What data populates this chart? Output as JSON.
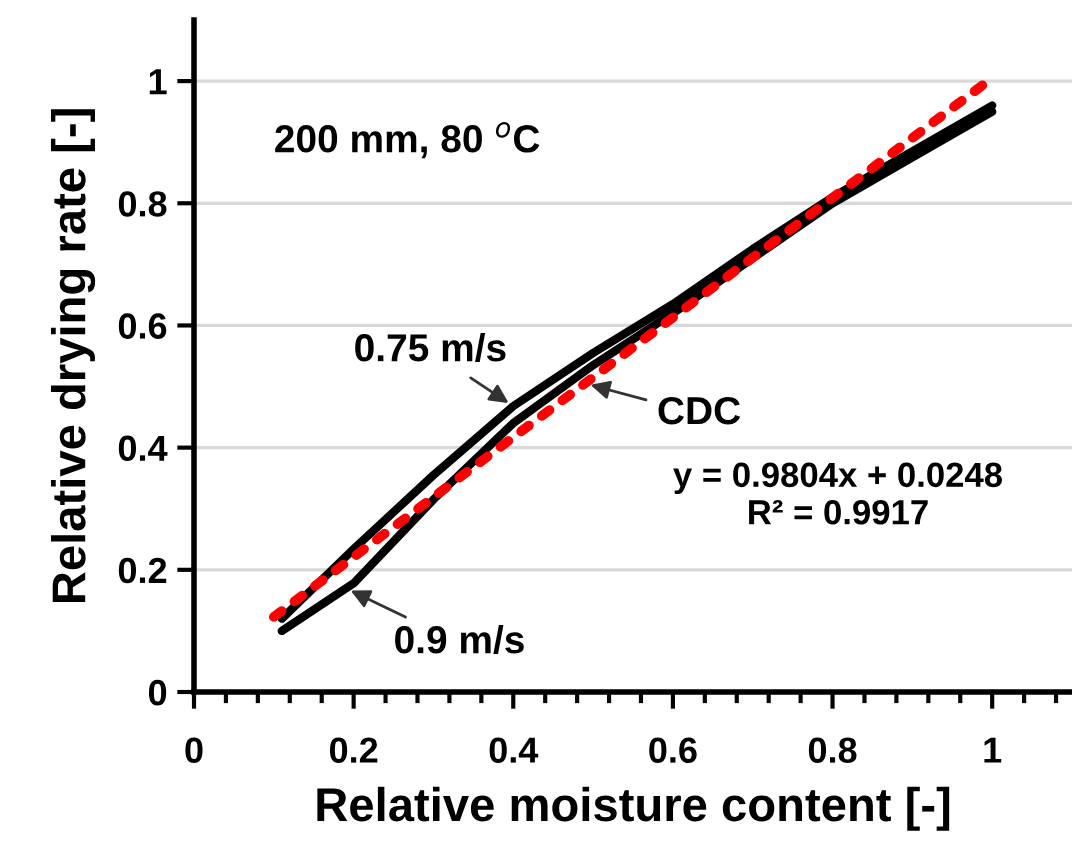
{
  "chart_data": {
    "type": "line",
    "xlabel": "Relative moisture content [-]",
    "ylabel": "Relative drying rate [-]",
    "xlim": [
      0,
      1.1
    ],
    "ylim": [
      0,
      1.1
    ],
    "xticks": [
      0,
      0.2,
      0.4,
      0.6,
      0.8,
      1
    ],
    "yticks": [
      0,
      0.2,
      0.4,
      0.6,
      0.8,
      1
    ],
    "grid": "y",
    "legend": false,
    "series": [
      {
        "color": "#000000",
        "line_style": "solid",
        "x": [
          0.11,
          0.2,
          0.3,
          0.4,
          0.5,
          0.6,
          0.7,
          0.8,
          0.9,
          1.0
        ],
        "values": [
          0.12,
          0.234,
          0.355,
          0.468,
          0.555,
          0.635,
          0.725,
          0.81,
          0.885,
          0.96
        ]
      },
      {
        "color": "#000000",
        "line_style": "solid",
        "x": [
          0.11,
          0.2,
          0.3,
          0.4,
          0.5,
          0.6,
          0.7,
          0.8,
          0.9,
          1.0
        ],
        "values": [
          0.1,
          0.178,
          0.315,
          0.44,
          0.535,
          0.62,
          0.71,
          0.8,
          0.875,
          0.95
        ]
      },
      {
        "color": "#ff0000",
        "line_style": "dotted",
        "x": [
          0.1,
          1.0
        ],
        "values": [
          0.123,
          1.005
        ]
      }
    ],
    "annotations": [
      "200 mm, 80 $^{o}$C",
      {
        "text": "0.75 m/s",
        "x": 0.4,
        "y": 0.468
      },
      {
        "text": "0.9 m/s",
        "x": 0.19,
        "y": 0.17
      },
      {
        "text": "CDC",
        "x": 0.49,
        "y": 0.505
      },
      "y = 0.9804x + 0.0248\nR² = 0.9917"
    ]
  }
}
